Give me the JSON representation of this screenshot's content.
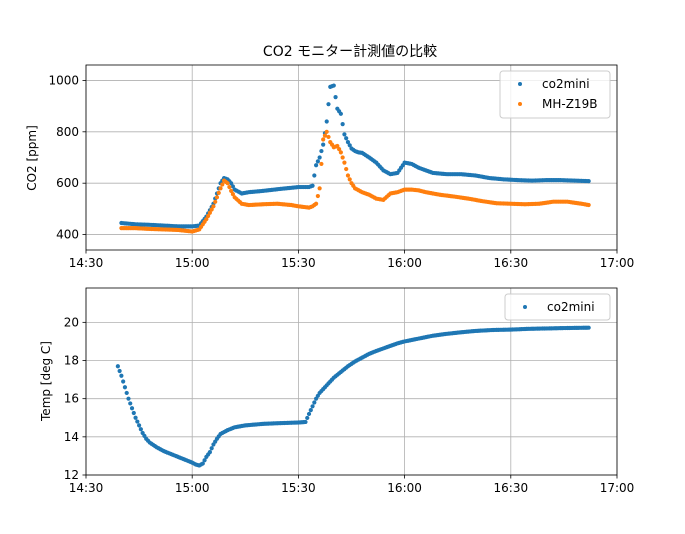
{
  "chart_data": [
    {
      "type": "scatter",
      "title": "CO2 モニター計測値の比較",
      "xlabel": "",
      "ylabel": "CO2 [ppm]",
      "x_ticks": [
        "14:30",
        "15:00",
        "15:30",
        "16:00",
        "16:30",
        "17:00"
      ],
      "y_ticks": [
        400,
        600,
        800,
        1000
      ],
      "xlim": [
        "14:30",
        "17:00"
      ],
      "ylim": [
        340,
        1060
      ],
      "grid": true,
      "legend": "top-right",
      "series": [
        {
          "name": "co2mini",
          "color": "#1f77b4",
          "points": [
            [
              "14:40",
              445
            ],
            [
              "14:44",
              440
            ],
            [
              "14:48",
              438
            ],
            [
              "14:52",
              435
            ],
            [
              "14:56",
              432
            ],
            [
              "15:00",
              432
            ],
            [
              "15:02",
              435
            ],
            [
              "15:04",
              470
            ],
            [
              "15:06",
              520
            ],
            [
              "15:08",
              600
            ],
            [
              "15:09",
              620
            ],
            [
              "15:10",
              615
            ],
            [
              "15:11",
              600
            ],
            [
              "15:12",
              575
            ],
            [
              "15:14",
              560
            ],
            [
              "15:16",
              565
            ],
            [
              "15:20",
              570
            ],
            [
              "15:25",
              578
            ],
            [
              "15:28",
              582
            ],
            [
              "15:30",
              585
            ],
            [
              "15:33",
              585
            ],
            [
              "15:34",
              590
            ],
            [
              "15:35",
              670
            ],
            [
              "15:36",
              700
            ],
            [
              "15:37",
              750
            ],
            [
              "15:38",
              840
            ],
            [
              "15:39",
              975
            ],
            [
              "15:40",
              980
            ],
            [
              "15:41",
              890
            ],
            [
              "15:42",
              870
            ],
            [
              "15:43",
              790
            ],
            [
              "15:44",
              760
            ],
            [
              "15:45",
              735
            ],
            [
              "15:46",
              725
            ],
            [
              "15:47",
              720
            ],
            [
              "15:48",
              718
            ],
            [
              "15:50",
              700
            ],
            [
              "15:52",
              680
            ],
            [
              "15:54",
              650
            ],
            [
              "15:56",
              635
            ],
            [
              "15:58",
              640
            ],
            [
              "16:00",
              680
            ],
            [
              "16:02",
              675
            ],
            [
              "16:04",
              660
            ],
            [
              "16:06",
              650
            ],
            [
              "16:08",
              640
            ],
            [
              "16:12",
              635
            ],
            [
              "16:16",
              635
            ],
            [
              "16:20",
              630
            ],
            [
              "16:24",
              620
            ],
            [
              "16:28",
              615
            ],
            [
              "16:32",
              612
            ],
            [
              "16:36",
              610
            ],
            [
              "16:40",
              612
            ],
            [
              "16:44",
              612
            ],
            [
              "16:48",
              610
            ],
            [
              "16:52",
              608
            ]
          ]
        },
        {
          "name": "MH-Z19B",
          "color": "#ff7f0e",
          "points": [
            [
              "14:40",
              425
            ],
            [
              "14:44",
              425
            ],
            [
              "14:48",
              422
            ],
            [
              "14:52",
              420
            ],
            [
              "14:56",
              418
            ],
            [
              "15:00",
              412
            ],
            [
              "15:02",
              420
            ],
            [
              "15:04",
              460
            ],
            [
              "15:06",
              510
            ],
            [
              "15:08",
              580
            ],
            [
              "15:09",
              610
            ],
            [
              "15:10",
              600
            ],
            [
              "15:11",
              570
            ],
            [
              "15:12",
              545
            ],
            [
              "15:14",
              520
            ],
            [
              "15:16",
              515
            ],
            [
              "15:20",
              518
            ],
            [
              "15:24",
              520
            ],
            [
              "15:28",
              515
            ],
            [
              "15:30",
              510
            ],
            [
              "15:33",
              505
            ],
            [
              "15:34",
              510
            ],
            [
              "15:35",
              520
            ],
            [
              "15:36",
              580
            ],
            [
              "15:37",
              770
            ],
            [
              "15:38",
              800
            ],
            [
              "15:39",
              760
            ],
            [
              "15:40",
              740
            ],
            [
              "15:41",
              745
            ],
            [
              "15:42",
              720
            ],
            [
              "15:43",
              680
            ],
            [
              "15:44",
              630
            ],
            [
              "15:45",
              600
            ],
            [
              "15:46",
              580
            ],
            [
              "15:48",
              565
            ],
            [
              "15:50",
              555
            ],
            [
              "15:52",
              540
            ],
            [
              "15:54",
              535
            ],
            [
              "15:56",
              560
            ],
            [
              "15:58",
              565
            ],
            [
              "16:00",
              575
            ],
            [
              "16:02",
              575
            ],
            [
              "16:04",
              572
            ],
            [
              "16:06",
              565
            ],
            [
              "16:10",
              555
            ],
            [
              "16:14",
              548
            ],
            [
              "16:18",
              540
            ],
            [
              "16:22",
              530
            ],
            [
              "16:26",
              522
            ],
            [
              "16:30",
              520
            ],
            [
              "16:34",
              518
            ],
            [
              "16:38",
              520
            ],
            [
              "16:42",
              528
            ],
            [
              "16:46",
              528
            ],
            [
              "16:50",
              520
            ],
            [
              "16:52",
              515
            ]
          ]
        }
      ]
    },
    {
      "type": "scatter",
      "title": "",
      "xlabel": "",
      "ylabel": "Temp [deg C]",
      "x_ticks": [
        "14:30",
        "15:00",
        "15:30",
        "16:00",
        "16:30",
        "17:00"
      ],
      "y_ticks": [
        12,
        14,
        16,
        18,
        20
      ],
      "xlim": [
        "14:30",
        "17:00"
      ],
      "ylim": [
        12,
        21.8
      ],
      "grid": true,
      "legend": "top-right",
      "series": [
        {
          "name": "co2mini",
          "color": "#1f77b4",
          "points": [
            [
              "14:39",
              17.7
            ],
            [
              "14:40",
              17.2
            ],
            [
              "14:41",
              16.6
            ],
            [
              "14:42",
              16.0
            ],
            [
              "14:43",
              15.5
            ],
            [
              "14:44",
              15.0
            ],
            [
              "14:45",
              14.6
            ],
            [
              "14:46",
              14.2
            ],
            [
              "14:47",
              13.9
            ],
            [
              "14:48",
              13.7
            ],
            [
              "14:50",
              13.45
            ],
            [
              "14:52",
              13.25
            ],
            [
              "14:54",
              13.1
            ],
            [
              "14:56",
              12.95
            ],
            [
              "14:58",
              12.8
            ],
            [
              "15:00",
              12.65
            ],
            [
              "15:01",
              12.55
            ],
            [
              "15:02",
              12.5
            ],
            [
              "15:03",
              12.6
            ],
            [
              "15:04",
              12.95
            ],
            [
              "15:05",
              13.2
            ],
            [
              "15:06",
              13.6
            ],
            [
              "15:07",
              13.9
            ],
            [
              "15:08",
              14.15
            ],
            [
              "15:10",
              14.35
            ],
            [
              "15:12",
              14.5
            ],
            [
              "15:15",
              14.6
            ],
            [
              "15:20",
              14.68
            ],
            [
              "15:25",
              14.72
            ],
            [
              "15:30",
              14.75
            ],
            [
              "15:32",
              14.78
            ],
            [
              "15:33",
              15.2
            ],
            [
              "15:34",
              15.6
            ],
            [
              "15:35",
              16.0
            ],
            [
              "15:36",
              16.3
            ],
            [
              "15:38",
              16.7
            ],
            [
              "15:40",
              17.1
            ],
            [
              "15:42",
              17.4
            ],
            [
              "15:44",
              17.7
            ],
            [
              "15:46",
              17.95
            ],
            [
              "15:48",
              18.15
            ],
            [
              "15:50",
              18.35
            ],
            [
              "15:52",
              18.5
            ],
            [
              "15:55",
              18.7
            ],
            [
              "15:58",
              18.9
            ],
            [
              "16:00",
              19.0
            ],
            [
              "16:04",
              19.15
            ],
            [
              "16:08",
              19.3
            ],
            [
              "16:12",
              19.4
            ],
            [
              "16:16",
              19.48
            ],
            [
              "16:20",
              19.55
            ],
            [
              "16:25",
              19.6
            ],
            [
              "16:30",
              19.62
            ],
            [
              "16:35",
              19.66
            ],
            [
              "16:40",
              19.68
            ],
            [
              "16:45",
              19.7
            ],
            [
              "16:52",
              19.72
            ]
          ]
        }
      ]
    }
  ]
}
